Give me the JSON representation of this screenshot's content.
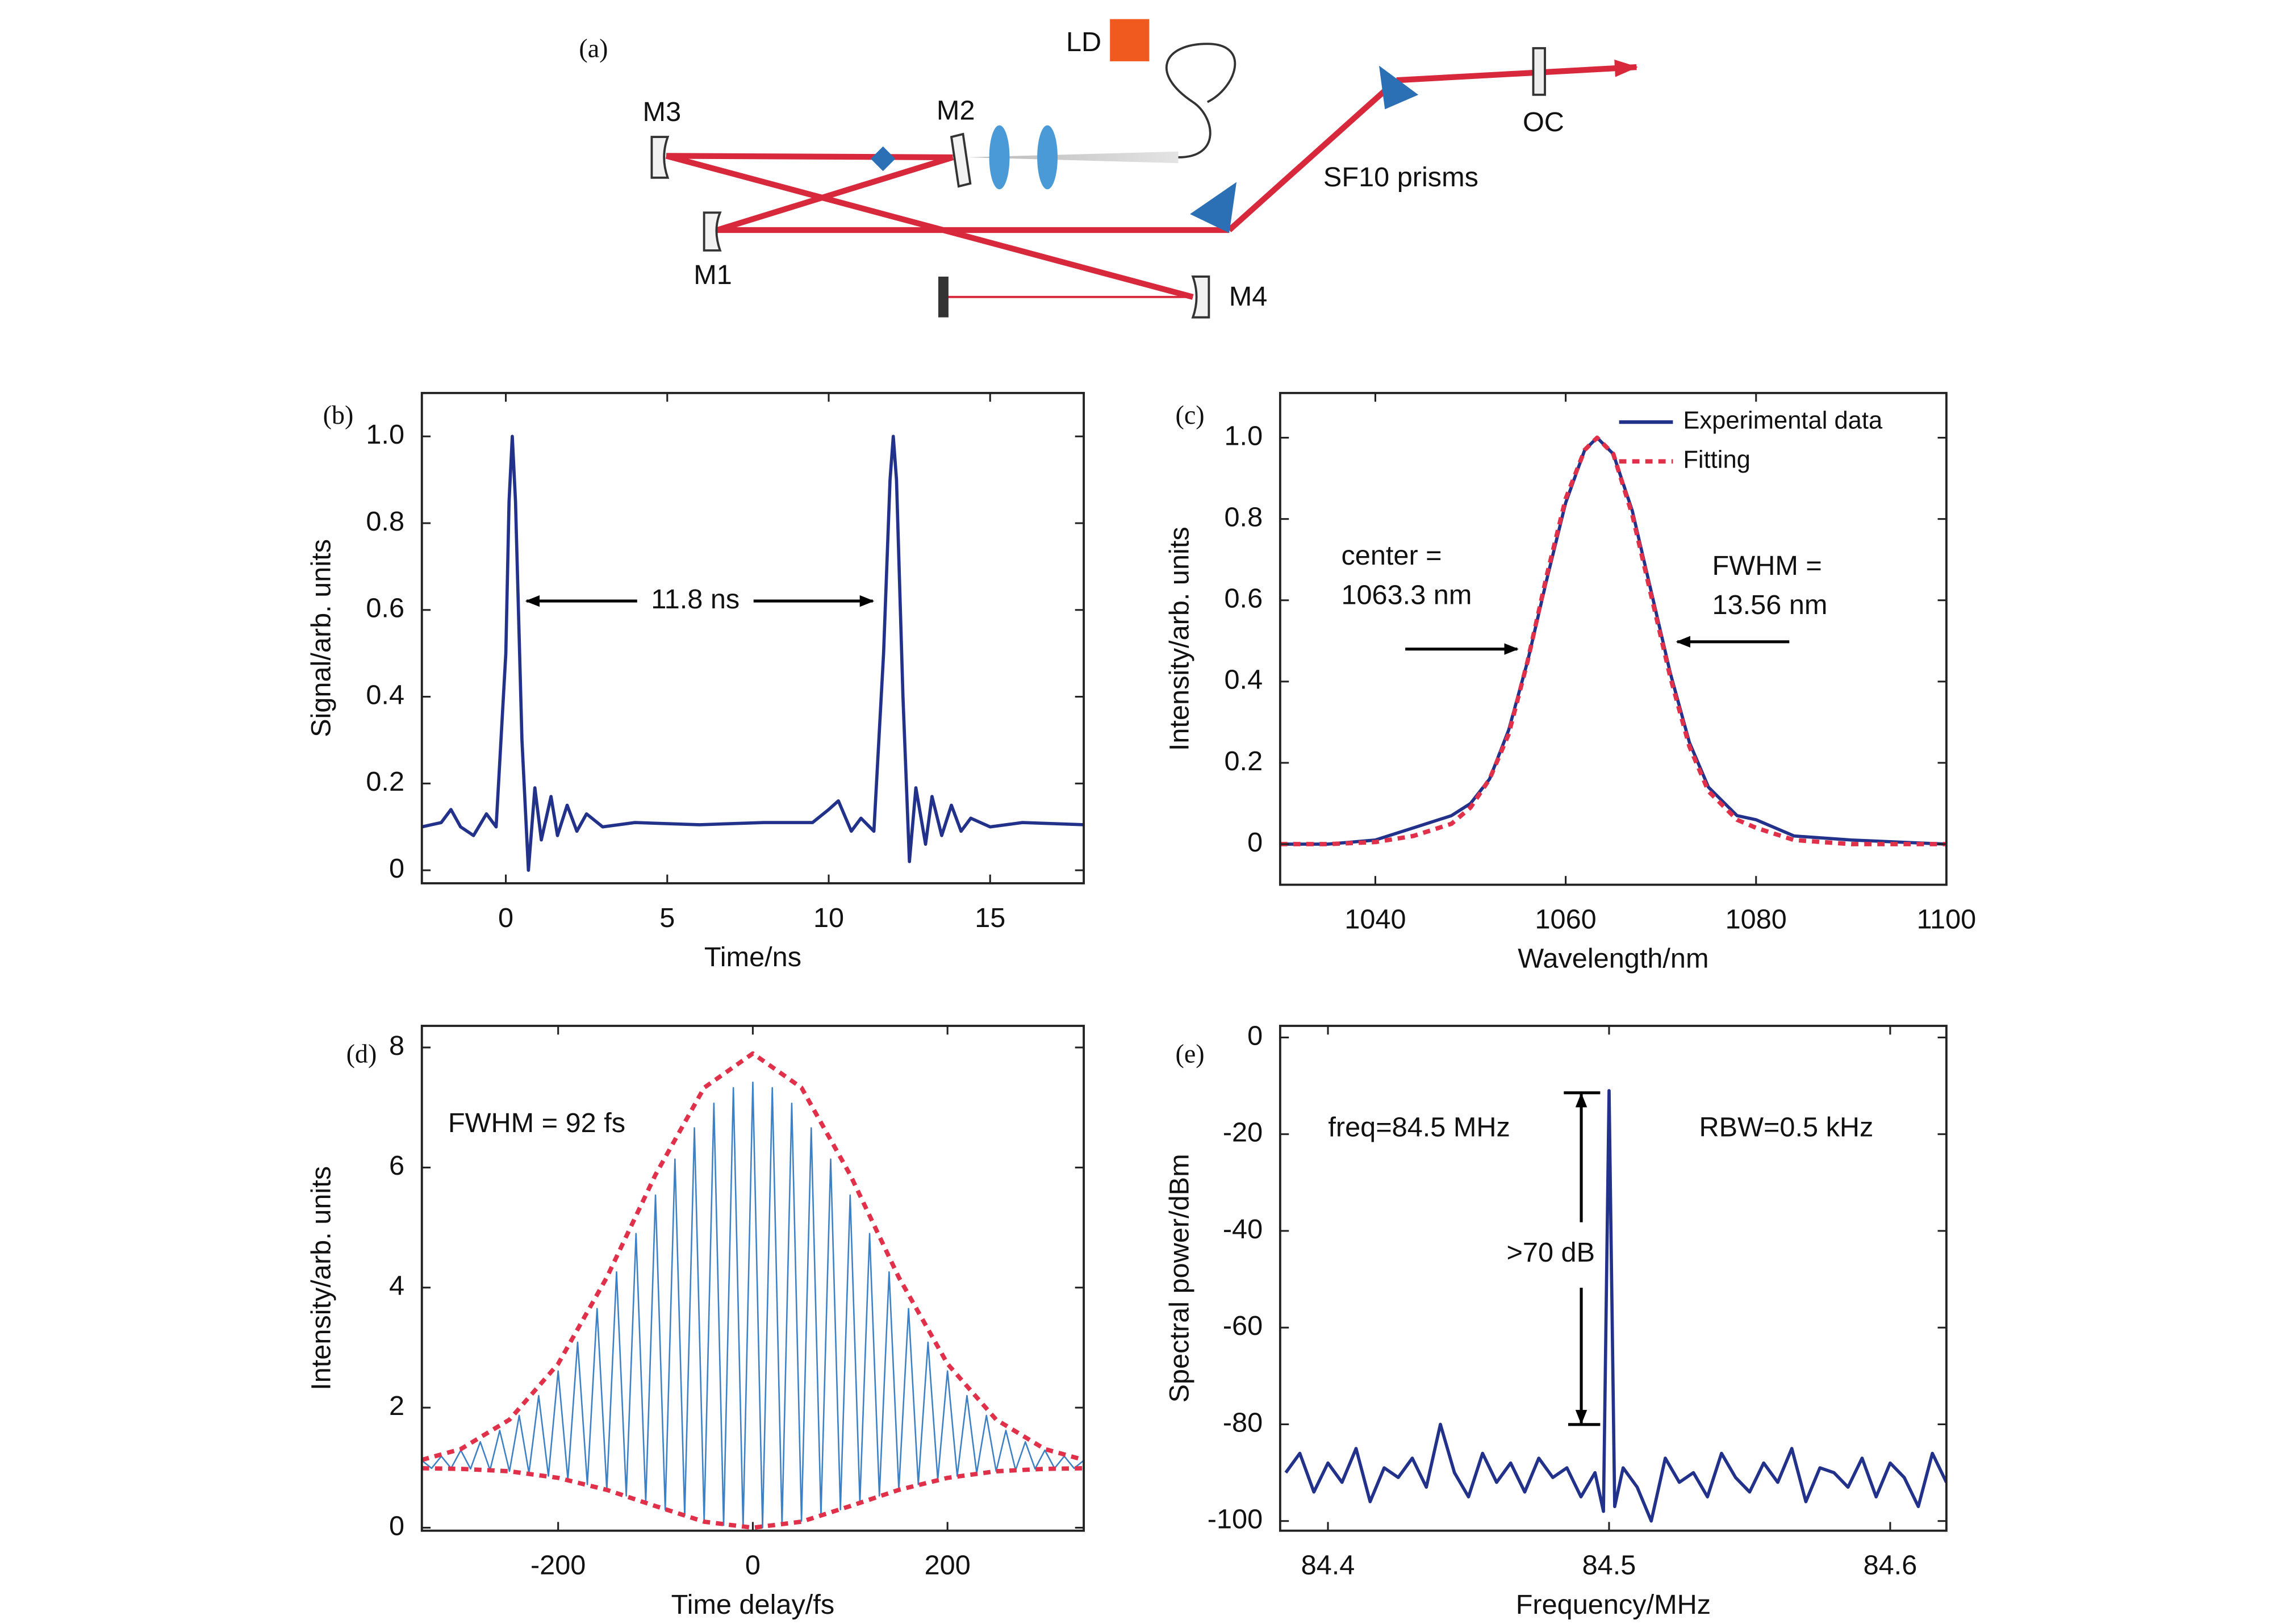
{
  "diagram": {
    "panel_label": "(a)",
    "laser_diode": "LD",
    "mirrors": [
      "M3",
      "M2",
      "M1",
      "M4"
    ],
    "prisms": "SF10 prisms",
    "output_coupler": "OC"
  },
  "chart_data": [
    {
      "type": "line",
      "panel_label": "(b)",
      "x_label": "Time/ns",
      "y_label": "Signal/arb. units",
      "xlim": [
        -2.6,
        17.9
      ],
      "ylim": [
        -0.03,
        1.1
      ],
      "xticks": [
        0,
        5,
        10,
        15
      ],
      "yticks": [
        0,
        0.2,
        0.4,
        0.6,
        0.8,
        {
          "value": 1,
          "label": "1.0"
        }
      ],
      "annotations": [
        "11.8 ns"
      ],
      "x": [
        -2.6,
        -2,
        -1.7,
        -1.4,
        -1,
        -0.6,
        -0.3,
        0,
        0.1,
        0.2,
        0.3,
        0.5,
        0.7,
        0.9,
        1.1,
        1.4,
        1.6,
        1.9,
        2.2,
        2.5,
        3,
        4,
        6,
        8,
        9.5,
        10,
        10.3,
        10.7,
        11,
        11.4,
        11.7,
        11.9,
        12,
        12.1,
        12.3,
        12.5,
        12.7,
        13,
        13.2,
        13.5,
        13.8,
        14.1,
        14.4,
        15,
        16,
        17.9
      ],
      "series": [
        {
          "color": "#22318a",
          "values": [
            0.1,
            0.11,
            0.14,
            0.1,
            0.08,
            0.13,
            0.1,
            0.5,
            0.85,
            1.0,
            0.85,
            0.3,
            0,
            0.19,
            0.07,
            0.17,
            0.08,
            0.15,
            0.09,
            0.13,
            0.1,
            0.11,
            0.105,
            0.11,
            0.11,
            0.14,
            0.16,
            0.09,
            0.12,
            0.09,
            0.5,
            0.9,
            1.0,
            0.9,
            0.4,
            0.02,
            0.19,
            0.06,
            0.17,
            0.08,
            0.15,
            0.09,
            0.12,
            0.1,
            0.11,
            0.105
          ]
        }
      ]
    },
    {
      "type": "line",
      "panel_label": "(c)",
      "x_label": "Wavelength/nm",
      "y_label": "Intensity/arb. units",
      "xlim": [
        1030,
        1100
      ],
      "ylim": [
        -0.1,
        1.11
      ],
      "xticks": [
        1040,
        1060,
        1080,
        1100
      ],
      "yticks": [
        0,
        0.2,
        0.4,
        0.6,
        0.8,
        {
          "value": 1,
          "label": "1.0"
        }
      ],
      "legend": "upper right",
      "annotations": [
        "center =",
        "1063.3 nm",
        "FWHM =",
        "13.56 nm"
      ],
      "x": [
        1030,
        1035,
        1040,
        1044,
        1048,
        1050,
        1052,
        1054,
        1056,
        1058,
        1060,
        1062,
        1063.3,
        1065,
        1067,
        1069,
        1071,
        1073,
        1075,
        1078,
        1080,
        1084,
        1090,
        1100
      ],
      "series": [
        {
          "name": "Experimental data",
          "color": "#22318a",
          "linestyle": "solid",
          "values": [
            0,
            0,
            0.01,
            0.04,
            0.07,
            0.1,
            0.16,
            0.28,
            0.45,
            0.65,
            0.84,
            0.97,
            1.0,
            0.96,
            0.82,
            0.62,
            0.42,
            0.25,
            0.14,
            0.07,
            0.06,
            0.02,
            0.01,
            0
          ]
        },
        {
          "name": "Fitting",
          "color": "#e0304a",
          "linestyle": "dashed",
          "values": [
            0,
            0,
            0.005,
            0.02,
            0.05,
            0.09,
            0.16,
            0.27,
            0.45,
            0.66,
            0.85,
            0.97,
            1.0,
            0.96,
            0.81,
            0.61,
            0.41,
            0.24,
            0.13,
            0.06,
            0.04,
            0.01,
            0,
            0
          ]
        }
      ]
    },
    {
      "type": "line",
      "panel_label": "(d)",
      "x_label": "Time delay/fs",
      "y_label": "Intensity/arb. units",
      "xlim": [
        -340,
        340
      ],
      "ylim": [
        -0.05,
        8.36
      ],
      "xticks": [
        -200,
        0,
        200
      ],
      "yticks": [
        0,
        2,
        4,
        6,
        8
      ],
      "annotations": [
        "FWHM = 92 fs"
      ],
      "series": [
        {
          "color": "#3d80c4",
          "linestyle": "solid",
          "x": [
            -340,
            -330,
            -320,
            -310,
            -300,
            -290,
            -280,
            -270,
            -260,
            -250,
            -240,
            -230,
            -220,
            -210,
            -200,
            -190,
            -180,
            -170,
            -160,
            -150,
            -140,
            -130,
            -120,
            -110,
            -100,
            -90,
            -80,
            -70,
            -60,
            -50,
            -40,
            -30,
            -20,
            -10,
            0,
            10,
            20,
            30,
            40,
            50,
            60,
            70,
            80,
            90,
            100,
            110,
            120,
            130,
            140,
            150,
            160,
            170,
            180,
            190,
            200,
            210,
            220,
            230,
            240,
            250,
            260,
            270,
            280,
            290,
            300,
            310,
            320,
            330,
            340
          ],
          "values": [
            1.12,
            0.99,
            1.19,
            0.99,
            1.29,
            0.98,
            1.43,
            0.96,
            1.62,
            0.94,
            1.87,
            0.91,
            2.2,
            0.86,
            2.61,
            0.8,
            3.09,
            0.72,
            3.65,
            0.63,
            4.26,
            0.53,
            4.9,
            0.42,
            5.54,
            0.3,
            6.14,
            0.2,
            6.66,
            0.11,
            7.07,
            0.04,
            7.33,
            0,
            7.42,
            0,
            7.33,
            0.04,
            7.07,
            0.11,
            6.66,
            0.2,
            6.14,
            0.3,
            5.54,
            0.42,
            4.9,
            0.53,
            4.26,
            0.63,
            3.65,
            0.72,
            3.09,
            0.8,
            2.61,
            0.86,
            2.2,
            0.91,
            1.87,
            0.94,
            1.62,
            0.96,
            1.43,
            0.98,
            1.29,
            0.99,
            1.19,
            0.99,
            1.12
          ]
        },
        {
          "color": "#e0304a",
          "linestyle": "dashed",
          "x": [
            -340,
            -300,
            -250,
            -200,
            -150,
            -100,
            -50,
            0,
            50,
            100,
            150,
            200,
            250,
            300,
            340
          ],
          "values": [
            1.13,
            1.31,
            1.8,
            2.73,
            4.17,
            5.88,
            7.33,
            7.9,
            7.33,
            5.88,
            4.17,
            2.73,
            1.8,
            1.31,
            1.13
          ]
        },
        {
          "color": "#e0304a",
          "linestyle": "dashed",
          "x": [
            -340,
            -300,
            -250,
            -200,
            -150,
            -100,
            -50,
            0,
            50,
            100,
            150,
            200,
            250,
            300,
            340
          ],
          "values": [
            0.99,
            0.98,
            0.94,
            0.83,
            0.63,
            0.36,
            0.1,
            0,
            0.1,
            0.36,
            0.63,
            0.83,
            0.94,
            0.98,
            0.99
          ]
        }
      ]
    },
    {
      "type": "line",
      "panel_label": "(e)",
      "x_label": "Frequency/MHz",
      "y_label": "Spectral power/dBm",
      "xlim": [
        84.383,
        84.62
      ],
      "ylim": [
        -102,
        2.4
      ],
      "xticks": [
        84.4,
        84.5,
        84.6
      ],
      "yticks": [
        -100,
        -80,
        -60,
        -40,
        -20,
        0
      ],
      "annotations": [
        "freq=84.5 MHz",
        "RBW=0.5 kHz",
        ">70 dB"
      ],
      "x": [
        84.385,
        84.39,
        84.395,
        84.4,
        84.405,
        84.41,
        84.415,
        84.42,
        84.425,
        84.43,
        84.435,
        84.44,
        84.445,
        84.45,
        84.455,
        84.46,
        84.465,
        84.47,
        84.475,
        84.48,
        84.485,
        84.49,
        84.495,
        84.498,
        84.5,
        84.502,
        84.505,
        84.51,
        84.515,
        84.52,
        84.525,
        84.53,
        84.535,
        84.54,
        84.545,
        84.55,
        84.555,
        84.56,
        84.565,
        84.57,
        84.575,
        84.58,
        84.585,
        84.59,
        84.595,
        84.6,
        84.605,
        84.61,
        84.615,
        84.62
      ],
      "series": [
        {
          "color": "#22318a",
          "values": [
            -90,
            -86,
            -94,
            -88,
            -92,
            -85,
            -96,
            -89,
            -91,
            -87,
            -93,
            -80,
            -90,
            -95,
            -86,
            -92,
            -88,
            -94,
            -87,
            -91,
            -89,
            -95,
            -90,
            -98,
            -11,
            -97,
            -89,
            -93,
            -100,
            -87,
            -92,
            -90,
            -95,
            -86,
            -91,
            -94,
            -88,
            -92,
            -85,
            -96,
            -89,
            -90,
            -93,
            -87,
            -95,
            -88,
            -91,
            -97,
            -86,
            -92
          ]
        }
      ]
    }
  ]
}
